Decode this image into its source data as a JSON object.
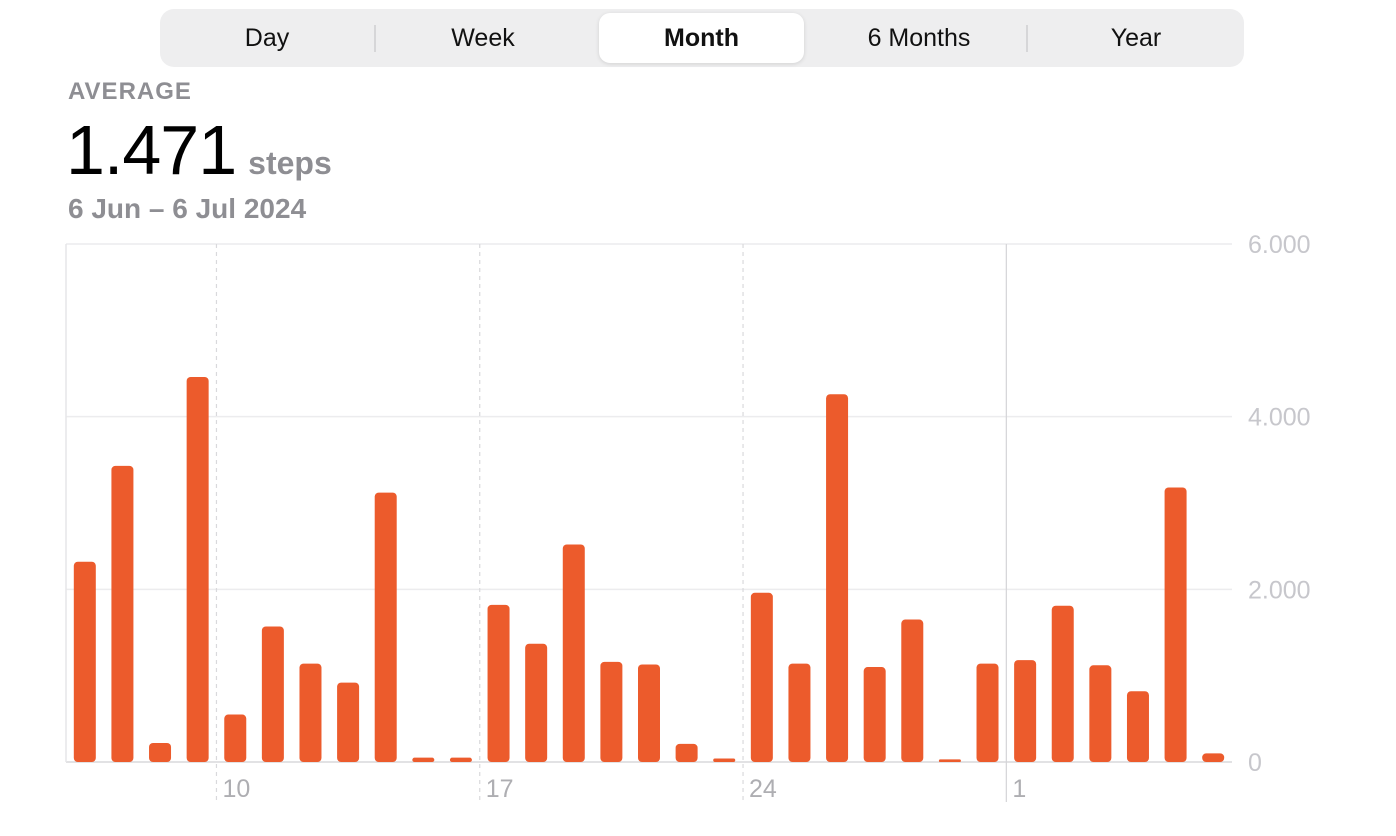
{
  "segmented_control": {
    "options": [
      "Day",
      "Week",
      "Month",
      "6 Months",
      "Year"
    ],
    "selected": "Month"
  },
  "summary": {
    "label": "AVERAGE",
    "value": "1.471",
    "unit": "steps",
    "date_range": "6 Jun – 6 Jul 2024"
  },
  "colors": {
    "bar": "#ec5b2c",
    "segment_bg": "#eeeeef",
    "secondary_text": "#8e8e93"
  },
  "chart_data": {
    "type": "bar",
    "categories": [
      "6 Jun",
      "7 Jun",
      "8 Jun",
      "9 Jun",
      "10 Jun",
      "11 Jun",
      "12 Jun",
      "13 Jun",
      "14 Jun",
      "15 Jun",
      "16 Jun",
      "17 Jun",
      "18 Jun",
      "19 Jun",
      "20 Jun",
      "21 Jun",
      "22 Jun",
      "23 Jun",
      "24 Jun",
      "25 Jun",
      "26 Jun",
      "27 Jun",
      "28 Jun",
      "29 Jun",
      "30 Jun",
      "1 Jul",
      "2 Jul",
      "3 Jul",
      "4 Jul",
      "5 Jul",
      "6 Jul"
    ],
    "values": [
      2320,
      3430,
      220,
      4460,
      550,
      1570,
      1140,
      920,
      3120,
      50,
      50,
      1820,
      1370,
      2520,
      1160,
      1130,
      210,
      40,
      1960,
      1140,
      4260,
      1100,
      1650,
      30,
      1140,
      1180,
      1810,
      1120,
      820,
      3180,
      100
    ],
    "ylim": [
      0,
      6000
    ],
    "y_ticks": [
      {
        "value": 0,
        "label": "0"
      },
      {
        "value": 2000,
        "label": "2.000"
      },
      {
        "value": 4000,
        "label": "4.000"
      },
      {
        "value": 6000,
        "label": "6.000"
      }
    ],
    "x_tick_labels": [
      {
        "category": "10 Jun",
        "label": "10"
      },
      {
        "category": "17 Jun",
        "label": "17"
      },
      {
        "category": "24 Jun",
        "label": "24"
      },
      {
        "category": "1 Jul",
        "label": "1"
      }
    ],
    "y_axis_position": "right",
    "grid": true
  }
}
